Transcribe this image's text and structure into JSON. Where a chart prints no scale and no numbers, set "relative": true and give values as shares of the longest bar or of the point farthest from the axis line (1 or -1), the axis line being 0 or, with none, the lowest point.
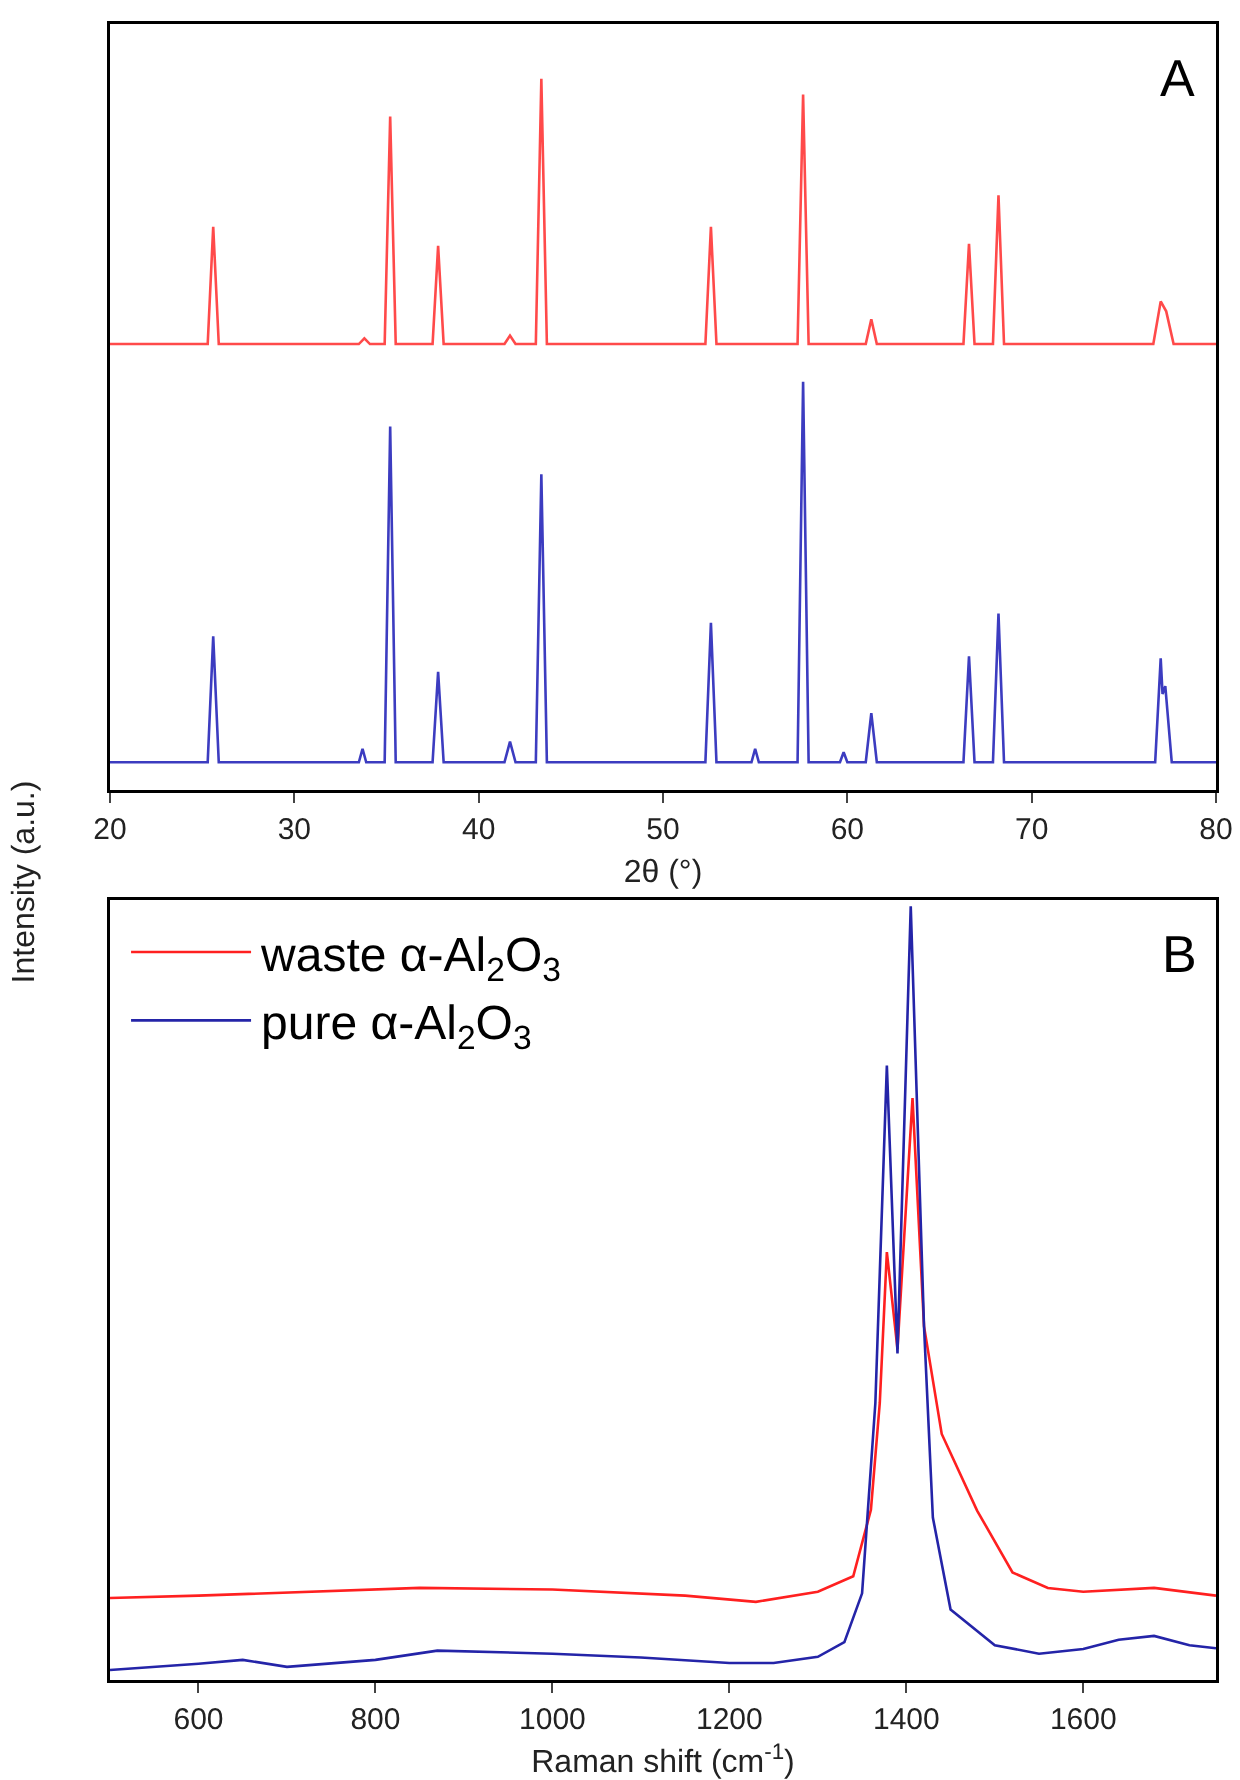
{
  "chart_data": [
    {
      "type": "line",
      "relative": true,
      "xlabel": "2θ (°)",
      "ylabel": "Intensity (a.u.)",
      "annotations": [
        "A"
      ],
      "xlim": [
        20,
        80
      ],
      "xticks": [
        20,
        30,
        40,
        50,
        60,
        70,
        80
      ],
      "tick_labels": "x",
      "legend": false,
      "marker": "none",
      "series": [
        {
          "color": "#ff4a4a",
          "x": [
            20,
            25.3,
            25.6,
            25.9,
            33.5,
            33.8,
            34.1,
            34.9,
            35.2,
            35.5,
            37.5,
            37.8,
            38.1,
            41.4,
            41.7,
            42.0,
            43.1,
            43.4,
            43.7,
            52.3,
            52.6,
            52.9,
            57.3,
            57.6,
            57.9,
            61.0,
            61.3,
            61.6,
            66.3,
            66.6,
            66.9,
            67.9,
            68.2,
            68.5,
            76.6,
            77.0,
            77.3,
            77.7,
            80
          ],
          "values": [
            0.627,
            0.627,
            0.792,
            0.627,
            0.627,
            0.635,
            0.627,
            0.627,
            0.947,
            0.627,
            0.627,
            0.765,
            0.627,
            0.627,
            0.639,
            0.627,
            0.627,
            1.0,
            0.627,
            0.627,
            0.792,
            0.627,
            0.627,
            0.978,
            0.627,
            0.627,
            0.662,
            0.627,
            0.627,
            0.768,
            0.627,
            0.627,
            0.836,
            0.627,
            0.627,
            0.687,
            0.673,
            0.627,
            0.627
          ]
        },
        {
          "color": "#3c3cc0",
          "x": [
            20,
            25.3,
            25.6,
            25.9,
            33.5,
            33.7,
            33.9,
            34.9,
            35.2,
            35.5,
            37.5,
            37.8,
            38.1,
            41.4,
            41.7,
            42.0,
            43.1,
            43.4,
            43.7,
            52.3,
            52.6,
            52.9,
            54.8,
            55.0,
            55.2,
            57.3,
            57.6,
            57.9,
            59.6,
            59.8,
            60.0,
            61.0,
            61.3,
            61.6,
            66.3,
            66.6,
            66.9,
            67.9,
            68.2,
            68.5,
            76.7,
            77.0,
            77.1,
            77.25,
            77.6,
            80
          ],
          "values": [
            0.039,
            0.039,
            0.216,
            0.039,
            0.039,
            0.058,
            0.039,
            0.039,
            0.511,
            0.039,
            0.039,
            0.166,
            0.039,
            0.039,
            0.068,
            0.039,
            0.039,
            0.444,
            0.039,
            0.039,
            0.235,
            0.039,
            0.039,
            0.058,
            0.039,
            0.039,
            0.574,
            0.039,
            0.039,
            0.053,
            0.039,
            0.039,
            0.108,
            0.039,
            0.039,
            0.188,
            0.039,
            0.039,
            0.248,
            0.039,
            0.039,
            0.185,
            0.135,
            0.146,
            0.039,
            0.039
          ]
        }
      ]
    },
    {
      "type": "line",
      "relative": true,
      "xlabel": "Raman shift (cm$^{-1}$)",
      "annotations": [
        "B"
      ],
      "xlim": [
        500,
        1750
      ],
      "xticks": [
        600,
        800,
        1000,
        1200,
        1400,
        1600
      ],
      "tick_labels": "x",
      "legend": "top left",
      "marker": "none",
      "series": [
        {
          "name": "waste α-Al$_{2}$O$_{3}$",
          "color": "#ff2020",
          "x": [
            500,
            600,
            850,
            1000,
            1150,
            1230,
            1300,
            1340,
            1360,
            1370,
            1378,
            1390,
            1407,
            1420,
            1440,
            1480,
            1520,
            1560,
            1600,
            1680,
            1750
          ],
          "values": [
            0.106,
            0.109,
            0.119,
            0.117,
            0.109,
            0.101,
            0.114,
            0.134,
            0.22,
            0.358,
            0.553,
            0.428,
            0.752,
            0.457,
            0.318,
            0.219,
            0.139,
            0.119,
            0.114,
            0.119,
            0.109
          ]
        },
        {
          "name": "pure α-Al$_{2}$O$_{3}$",
          "color": "#2424a8",
          "x": [
            500,
            600,
            650,
            700,
            800,
            870,
            1000,
            1100,
            1200,
            1250,
            1300,
            1330,
            1350,
            1365,
            1378,
            1390,
            1405,
            1420,
            1430,
            1450,
            1500,
            1550,
            1600,
            1640,
            1680,
            1720,
            1750
          ],
          "values": [
            0.013,
            0.021,
            0.026,
            0.017,
            0.026,
            0.038,
            0.034,
            0.029,
            0.022,
            0.022,
            0.03,
            0.049,
            0.112,
            0.358,
            0.794,
            0.422,
            1.0,
            0.457,
            0.21,
            0.091,
            0.045,
            0.034,
            0.04,
            0.052,
            0.057,
            0.045,
            0.041
          ]
        }
      ]
    }
  ]
}
